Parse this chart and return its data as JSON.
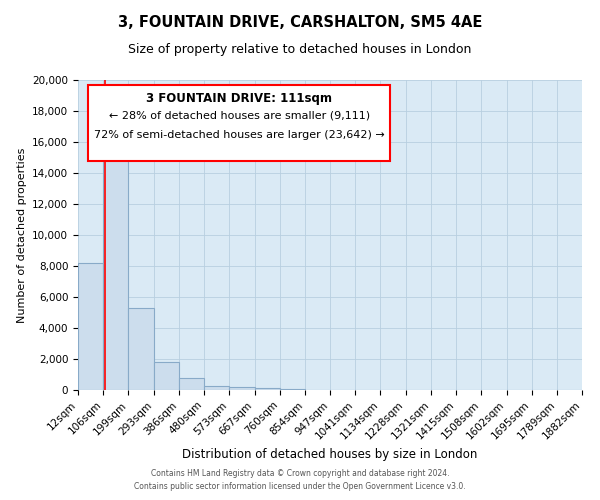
{
  "title": "3, FOUNTAIN DRIVE, CARSHALTON, SM5 4AE",
  "subtitle": "Size of property relative to detached houses in London",
  "xlabel": "Distribution of detached houses by size in London",
  "ylabel": "Number of detached properties",
  "bar_color": "#ccdded",
  "bar_edge_color": "#88aac8",
  "bg_color": "#daeaf5",
  "grid_color": "#b8cfe0",
  "red_line_x": 111,
  "annotation_title": "3 FOUNTAIN DRIVE: 111sqm",
  "annotation_line1": "← 28% of detached houses are smaller (9,111)",
  "annotation_line2": "72% of semi-detached houses are larger (23,642) →",
  "footer_line1": "Contains HM Land Registry data © Crown copyright and database right 2024.",
  "footer_line2": "Contains public sector information licensed under the Open Government Licence v3.0.",
  "bin_edges": [
    12,
    106,
    199,
    293,
    386,
    480,
    573,
    667,
    760,
    854,
    947,
    1041,
    1134,
    1228,
    1321,
    1415,
    1508,
    1602,
    1695,
    1789,
    1882
  ],
  "bin_counts": [
    8200,
    16600,
    5300,
    1800,
    750,
    250,
    180,
    100,
    75,
    0,
    0,
    0,
    0,
    0,
    0,
    0,
    0,
    0,
    0,
    0
  ],
  "ylim_max": 20000,
  "yticks": [
    0,
    2000,
    4000,
    6000,
    8000,
    10000,
    12000,
    14000,
    16000,
    18000,
    20000
  ],
  "tick_labels": [
    "12sqm",
    "106sqm",
    "199sqm",
    "293sqm",
    "386sqm",
    "480sqm",
    "573sqm",
    "667sqm",
    "760sqm",
    "854sqm",
    "947sqm",
    "1041sqm",
    "1134sqm",
    "1228sqm",
    "1321sqm",
    "1415sqm",
    "1508sqm",
    "1602sqm",
    "1695sqm",
    "1789sqm",
    "1882sqm"
  ]
}
